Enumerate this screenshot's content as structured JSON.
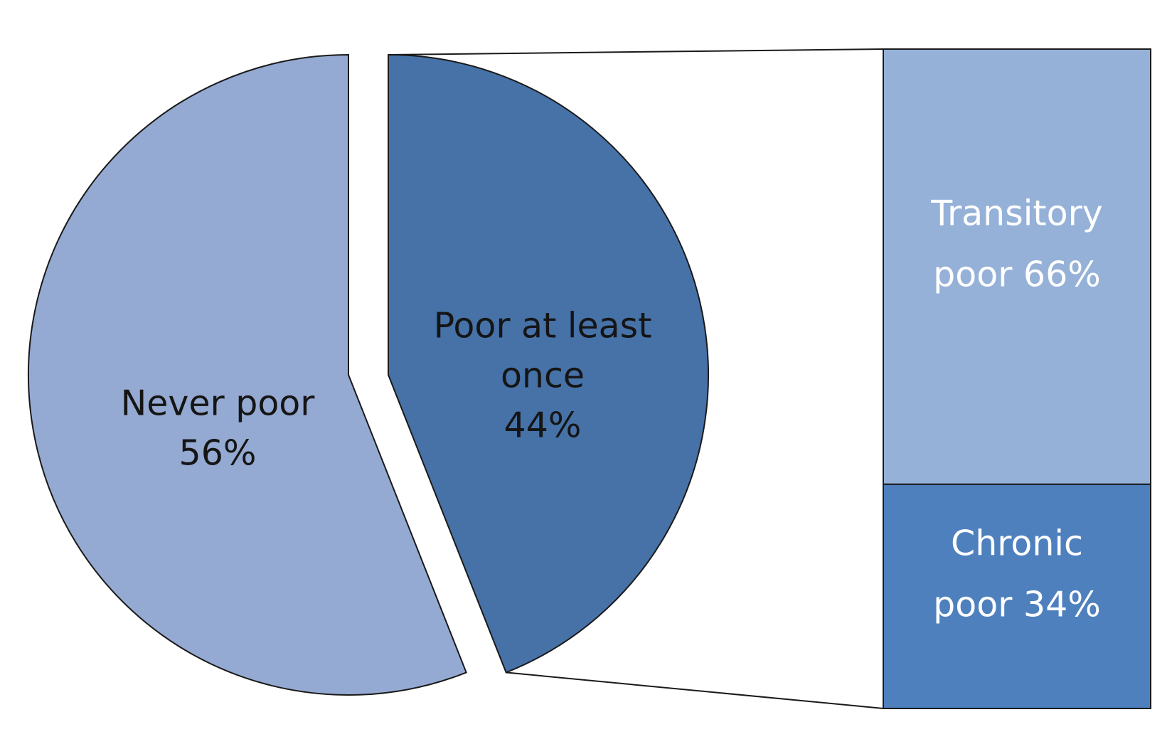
{
  "chart_data": {
    "type": "pie",
    "variant": "bar-of-pie",
    "colors": {
      "pie_never_poor": "#95aad2",
      "pie_poor_once": "#4672a8",
      "bar_transitory": "#95b1d8",
      "bar_chronic": "#4e80be",
      "outline": "#1a1a1a"
    },
    "pie": {
      "slices": [
        {
          "name": "Never poor",
          "value": 56,
          "label_lines": [
            "Never poor",
            "56%"
          ]
        },
        {
          "name": "Poor at least once",
          "value": 44,
          "label_lines": [
            "Poor at least",
            "once",
            "44%"
          ]
        }
      ]
    },
    "breakdown": {
      "of_slice": "Poor at least once",
      "segments": [
        {
          "name": "Transitory poor",
          "value": 66,
          "label_lines": [
            "Transitory",
            "poor 66%"
          ]
        },
        {
          "name": "Chronic poor",
          "value": 34,
          "label_lines": [
            "Chronic",
            "poor 34%"
          ]
        }
      ]
    }
  }
}
